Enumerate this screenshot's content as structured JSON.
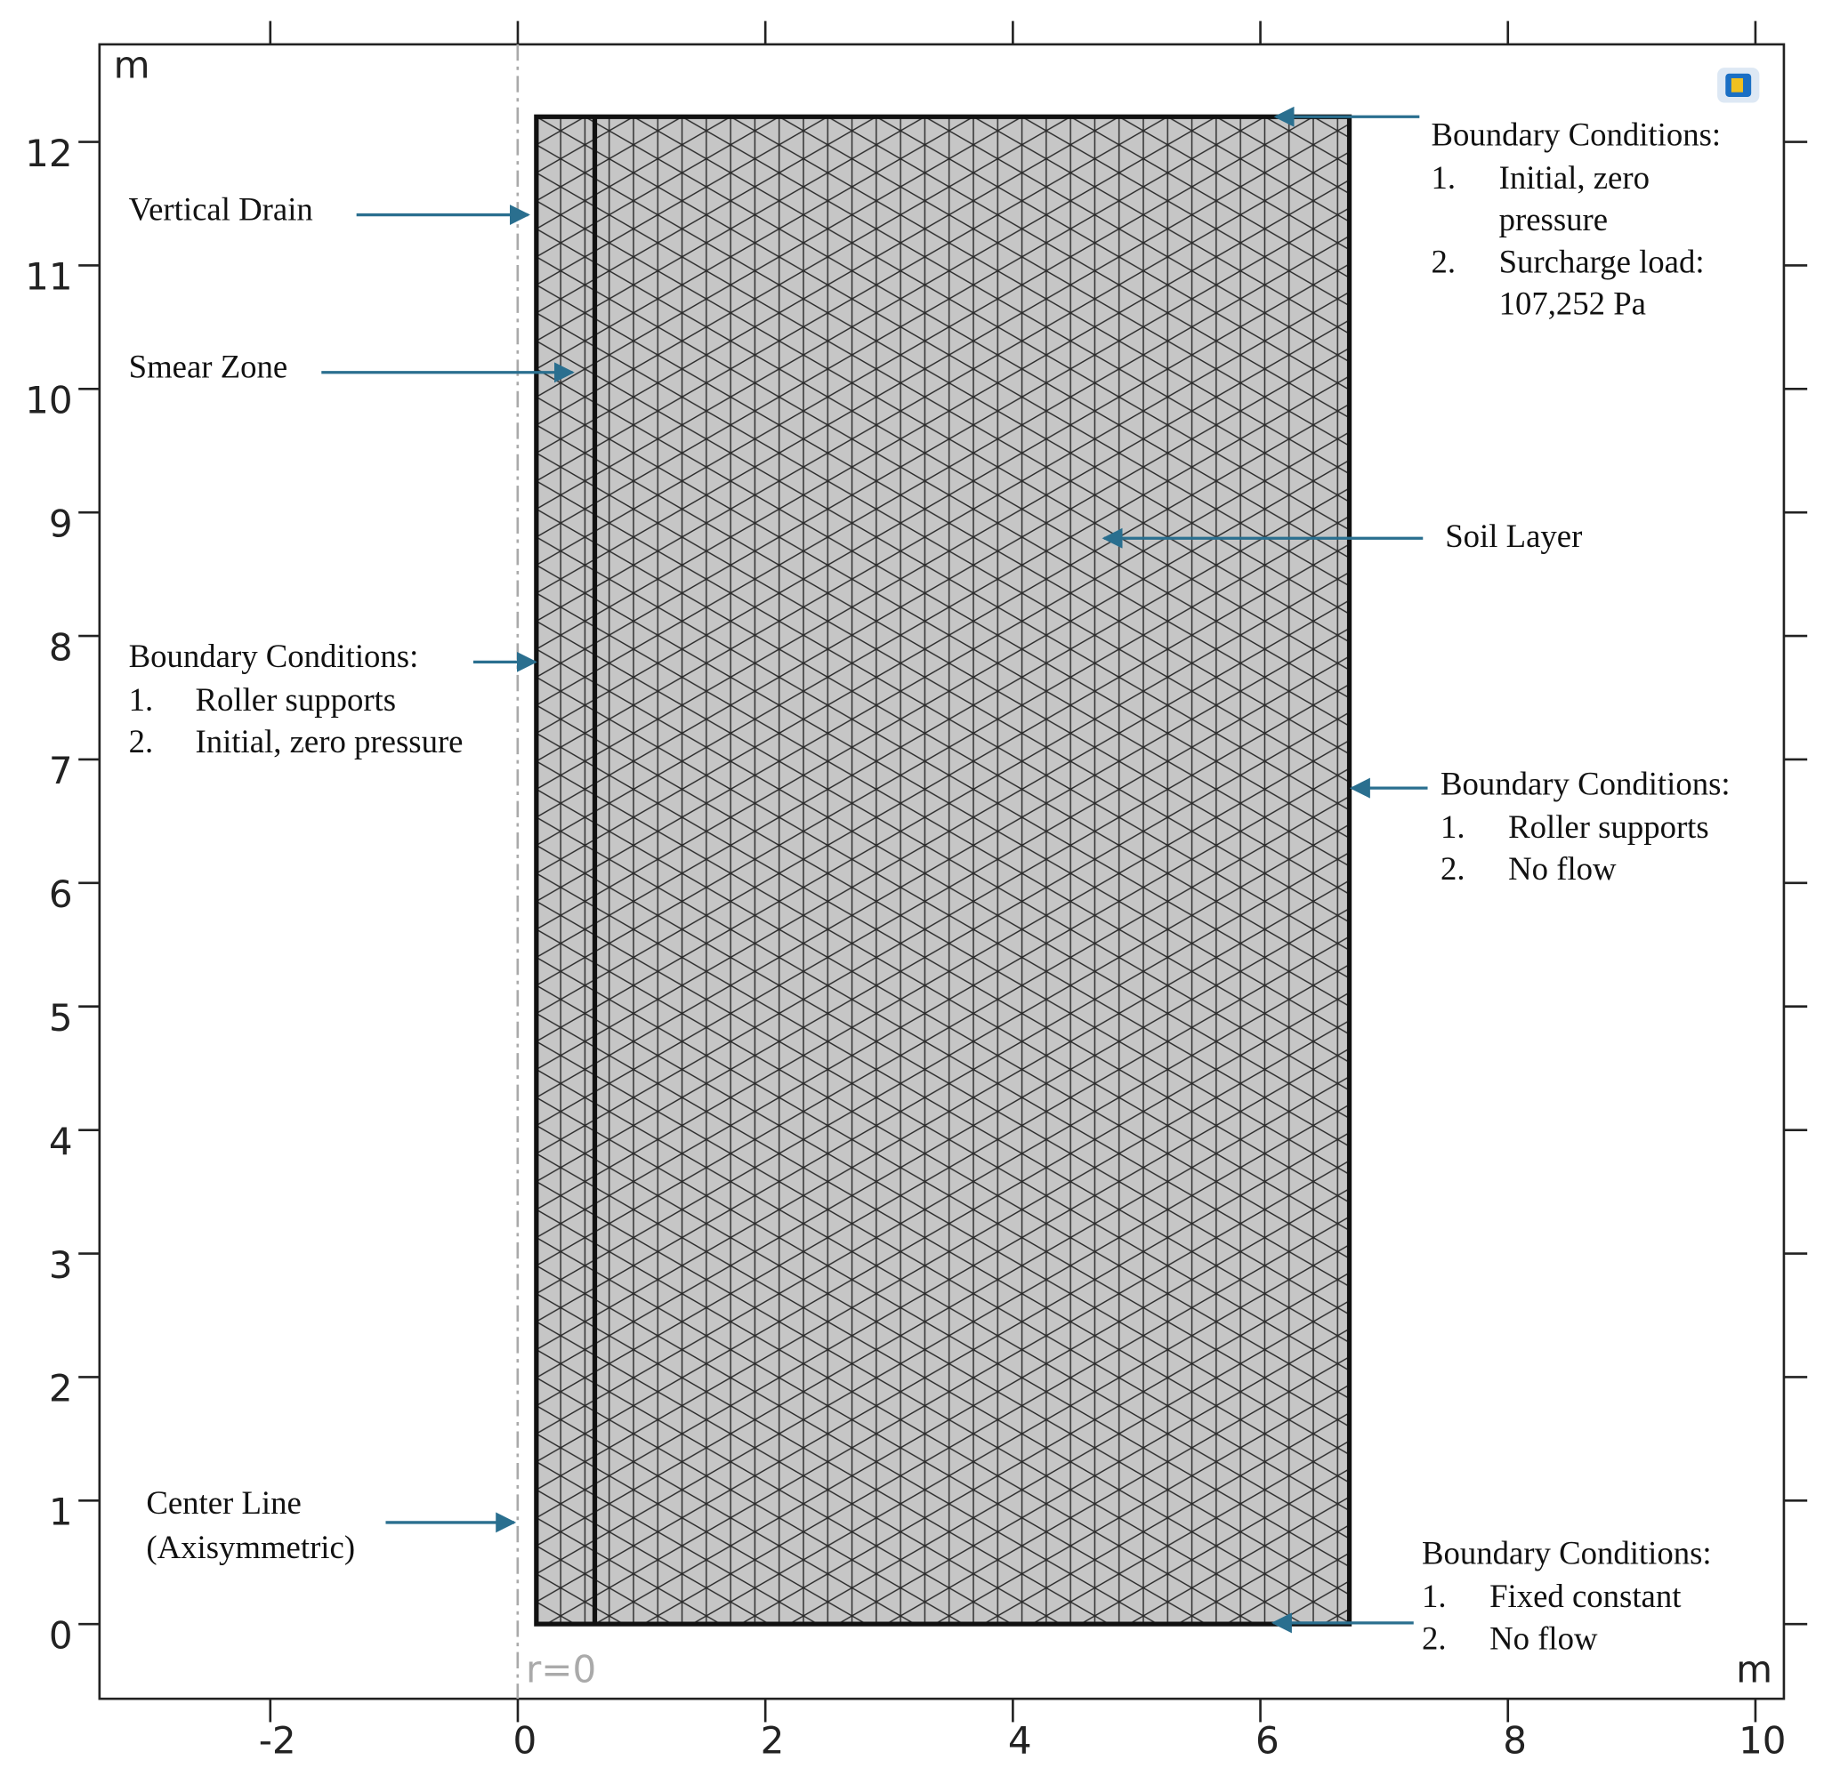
{
  "axes": {
    "x_unit": "m",
    "y_unit": "m",
    "xlim": [
      -3.38,
      10.23
    ],
    "ylim": [
      -0.605,
      12.79
    ],
    "xticks": [
      -2,
      0,
      2,
      4,
      6,
      8,
      10
    ],
    "yticks": [
      0,
      1,
      2,
      3,
      4,
      5,
      6,
      7,
      8,
      9,
      10,
      11,
      12
    ],
    "centerline_label": "r=0"
  },
  "labels": {
    "vertical_drain": "Vertical Drain",
    "smear_zone": "Smear Zone",
    "soil_layer": "Soil Layer",
    "center_line": [
      "Center Line",
      "(Axisymmetric)"
    ]
  },
  "boundary_left": {
    "heading": "Boundary Conditions:",
    "items": [
      {
        "number": "1.",
        "lines": [
          "Roller supports"
        ]
      },
      {
        "number": "2.",
        "lines": [
          "Initial, zero pressure"
        ]
      }
    ]
  },
  "boundary_top": {
    "heading": "Boundary Conditions:",
    "items": [
      {
        "number": "1.",
        "lines": [
          "Initial, zero",
          "pressure"
        ]
      },
      {
        "number": "2.",
        "lines": [
          "Surcharge load:",
          "107,252 Pa"
        ]
      }
    ]
  },
  "boundary_right": {
    "heading": "Boundary Conditions:",
    "items": [
      {
        "number": "1.",
        "lines": [
          "Roller supports"
        ]
      },
      {
        "number": "2.",
        "lines": [
          "No flow"
        ]
      }
    ]
  },
  "boundary_bottom": {
    "heading": "Boundary Conditions:",
    "items": [
      {
        "number": "1.",
        "lines": [
          "Fixed constant"
        ]
      },
      {
        "number": "2.",
        "lines": [
          "No flow"
        ]
      }
    ]
  }
}
